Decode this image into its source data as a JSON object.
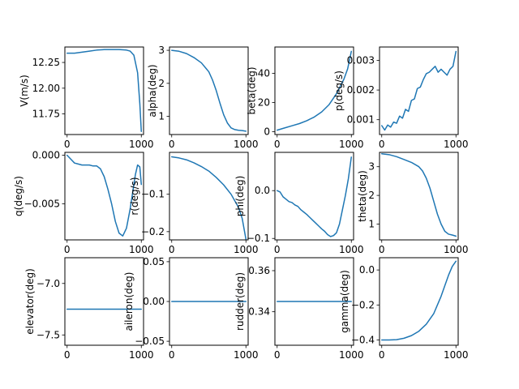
{
  "chart_data": [
    {
      "type": "line",
      "ylabel": "V(m/s)",
      "xlim": [
        -30,
        1030
      ],
      "ylim": [
        11.55,
        12.4
      ],
      "xticks": [
        0,
        1000
      ],
      "xtick_labels": [
        "0",
        "1000"
      ],
      "yticks": [
        11.75,
        12.0,
        12.25
      ],
      "ytick_labels": [
        "11.75",
        "12.00",
        "12.25"
      ],
      "x": [
        0,
        100,
        200,
        300,
        400,
        500,
        600,
        700,
        800,
        850,
        900,
        950,
        980,
        1000
      ],
      "y": [
        12.34,
        12.34,
        12.35,
        12.36,
        12.37,
        12.375,
        12.375,
        12.375,
        12.37,
        12.36,
        12.32,
        12.15,
        11.85,
        11.58
      ]
    },
    {
      "type": "line",
      "ylabel": "alpha(deg)",
      "xlim": [
        -30,
        1030
      ],
      "ylim": [
        0.45,
        3.1
      ],
      "xticks": [
        0,
        1000
      ],
      "xtick_labels": [
        "0",
        "1000"
      ],
      "yticks": [
        1,
        2,
        3
      ],
      "ytick_labels": [
        "1",
        "2",
        "3"
      ],
      "x": [
        0,
        100,
        200,
        300,
        400,
        500,
        550,
        600,
        650,
        700,
        750,
        800,
        850,
        900,
        950,
        1000
      ],
      "y": [
        3.0,
        2.97,
        2.9,
        2.78,
        2.62,
        2.35,
        2.1,
        1.78,
        1.4,
        1.05,
        0.8,
        0.65,
        0.6,
        0.58,
        0.57,
        0.55
      ]
    },
    {
      "type": "line",
      "ylabel": "beta(deg)",
      "xlim": [
        -30,
        1030
      ],
      "ylim": [
        -2,
        58
      ],
      "xticks": [
        0,
        1000
      ],
      "xtick_labels": [
        "0",
        "1000"
      ],
      "yticks": [
        0,
        20,
        40
      ],
      "ytick_labels": [
        "0",
        "20",
        "40"
      ],
      "x": [
        0,
        100,
        200,
        300,
        400,
        500,
        600,
        700,
        800,
        900,
        950,
        1000
      ],
      "y": [
        1,
        2.5,
        4,
        5.5,
        7.5,
        10,
        13.5,
        18.5,
        26,
        36,
        43,
        55
      ]
    },
    {
      "type": "line",
      "ylabel": "p(deg/s)",
      "xlim": [
        -30,
        1030
      ],
      "ylim": [
        0.0005,
        0.00345
      ],
      "xticks": [
        0,
        1000
      ],
      "xtick_labels": [
        "0",
        "1000"
      ],
      "yticks": [
        0.001,
        0.002,
        0.003
      ],
      "ytick_labels": [
        "0.001",
        "0.002",
        "0.003"
      ],
      "x": [
        0,
        40,
        80,
        120,
        160,
        200,
        240,
        280,
        320,
        360,
        400,
        440,
        480,
        520,
        560,
        600,
        640,
        680,
        720,
        760,
        800,
        840,
        880,
        920,
        960,
        1000
      ],
      "y": [
        0.0008,
        0.00065,
        0.00082,
        0.00075,
        0.00092,
        0.00088,
        0.00112,
        0.00105,
        0.00135,
        0.00128,
        0.00165,
        0.0017,
        0.00205,
        0.0021,
        0.00235,
        0.00255,
        0.0026,
        0.0027,
        0.0028,
        0.0026,
        0.0027,
        0.0026,
        0.0025,
        0.0027,
        0.0028,
        0.0033
      ]
    },
    {
      "type": "line",
      "ylabel": "q(deg/s)",
      "xlim": [
        -30,
        1030
      ],
      "ylim": [
        -0.0087,
        0.0003
      ],
      "xticks": [
        0,
        1000
      ],
      "xtick_labels": [
        "0",
        "1000"
      ],
      "yticks": [
        -0.005,
        0.0
      ],
      "ytick_labels": [
        "−0.005",
        "0.000"
      ],
      "x": [
        0,
        50,
        100,
        150,
        200,
        250,
        300,
        350,
        400,
        450,
        500,
        550,
        600,
        650,
        700,
        750,
        800,
        850,
        880,
        920,
        950,
        980,
        1000
      ],
      "y": [
        0.0,
        -0.0004,
        -0.0008,
        -0.0009,
        -0.001,
        -0.001,
        -0.001,
        -0.0011,
        -0.0011,
        -0.0014,
        -0.0022,
        -0.0035,
        -0.005,
        -0.0068,
        -0.008,
        -0.0083,
        -0.0075,
        -0.0055,
        -0.004,
        -0.002,
        -0.001,
        -0.0012,
        -0.003
      ]
    },
    {
      "type": "line",
      "ylabel": "r(deg/s)",
      "xlim": [
        -30,
        1030
      ],
      "ylim": [
        -0.222,
        0.012
      ],
      "xticks": [
        0,
        1000
      ],
      "xtick_labels": [
        "0",
        "1000"
      ],
      "yticks": [
        -0.2,
        -0.1
      ],
      "ytick_labels": [
        "−0.2",
        "−0.1"
      ],
      "x": [
        0,
        100,
        200,
        300,
        400,
        500,
        600,
        700,
        800,
        900,
        950,
        1000
      ],
      "y": [
        0.0,
        -0.003,
        -0.008,
        -0.016,
        -0.026,
        -0.038,
        -0.055,
        -0.075,
        -0.1,
        -0.135,
        -0.165,
        -0.22
      ]
    },
    {
      "type": "line",
      "ylabel": "phi(deg)",
      "xlim": [
        -30,
        1030
      ],
      "ylim": [
        -0.103,
        0.08
      ],
      "xticks": [
        0,
        1000
      ],
      "xtick_labels": [
        "0",
        "1000"
      ],
      "yticks": [
        -0.1,
        0.0
      ],
      "ytick_labels": [
        "−0.1",
        "0.0"
      ],
      "x": [
        0,
        40,
        80,
        120,
        160,
        200,
        240,
        280,
        320,
        360,
        400,
        440,
        480,
        520,
        560,
        600,
        640,
        680,
        720,
        760,
        800,
        840,
        880,
        920,
        960,
        1000
      ],
      "y": [
        0.0,
        -0.003,
        -0.013,
        -0.018,
        -0.023,
        -0.025,
        -0.03,
        -0.033,
        -0.04,
        -0.045,
        -0.05,
        -0.056,
        -0.062,
        -0.068,
        -0.074,
        -0.08,
        -0.085,
        -0.092,
        -0.096,
        -0.094,
        -0.088,
        -0.07,
        -0.04,
        -0.01,
        0.025,
        0.07
      ]
    },
    {
      "type": "line",
      "ylabel": "theta(deg)",
      "xlim": [
        -30,
        1030
      ],
      "ylim": [
        0.45,
        3.5
      ],
      "xticks": [
        0,
        1000
      ],
      "xtick_labels": [
        "0",
        "1000"
      ],
      "yticks": [
        1,
        2,
        3
      ],
      "ytick_labels": [
        "1",
        "2",
        "3"
      ],
      "x": [
        0,
        100,
        200,
        300,
        400,
        500,
        550,
        600,
        650,
        700,
        750,
        800,
        850,
        900,
        950,
        1000
      ],
      "y": [
        3.45,
        3.42,
        3.35,
        3.25,
        3.15,
        3.0,
        2.85,
        2.6,
        2.25,
        1.8,
        1.35,
        1.0,
        0.75,
        0.65,
        0.62,
        0.58
      ]
    },
    {
      "type": "line",
      "ylabel": "elevator(deg)",
      "xlim": [
        -30,
        1030
      ],
      "ylim": [
        -7.6,
        -6.75
      ],
      "xticks": [
        0,
        1000
      ],
      "xtick_labels": [
        "0",
        "1000"
      ],
      "yticks": [
        -7.5,
        -7.0
      ],
      "ytick_labels": [
        "−7.5",
        "−7.0"
      ],
      "x": [
        0,
        1000
      ],
      "y": [
        -7.25,
        -7.25
      ]
    },
    {
      "type": "line",
      "ylabel": "aileron(deg)",
      "xlim": [
        -30,
        1030
      ],
      "ylim": [
        -0.055,
        0.055
      ],
      "xticks": [
        0,
        1000
      ],
      "xtick_labels": [
        "0",
        "1000"
      ],
      "yticks": [
        -0.05,
        0.0,
        0.05
      ],
      "ytick_labels": [
        "−0.05",
        "0.00",
        "0.05"
      ],
      "x": [
        0,
        1000
      ],
      "y": [
        0.0,
        0.0
      ]
    },
    {
      "type": "line",
      "ylabel": "rudder(deg)",
      "xlim": [
        -30,
        1030
      ],
      "ylim": [
        0.3237,
        0.3663
      ],
      "xticks": [
        0,
        1000
      ],
      "xtick_labels": [
        "0",
        "1000"
      ],
      "yticks": [
        0.34,
        0.36
      ],
      "ytick_labels": [
        "0.34",
        "0.36"
      ],
      "x": [
        0,
        1000
      ],
      "y": [
        0.345,
        0.345
      ]
    },
    {
      "type": "line",
      "ylabel": "gamma(deg)",
      "xlim": [
        -30,
        1030
      ],
      "ylim": [
        -0.43,
        0.07
      ],
      "xticks": [
        0,
        1000
      ],
      "xtick_labels": [
        "0",
        "1000"
      ],
      "yticks": [
        -0.4,
        -0.2,
        0.0
      ],
      "ytick_labels": [
        "−0.4",
        "−0.2",
        "0.0"
      ],
      "x": [
        0,
        100,
        200,
        300,
        400,
        500,
        600,
        700,
        800,
        850,
        900,
        950,
        1000
      ],
      "y": [
        -0.4,
        -0.4,
        -0.398,
        -0.39,
        -0.375,
        -0.35,
        -0.31,
        -0.25,
        -0.15,
        -0.09,
        -0.03,
        0.02,
        0.05
      ]
    }
  ]
}
